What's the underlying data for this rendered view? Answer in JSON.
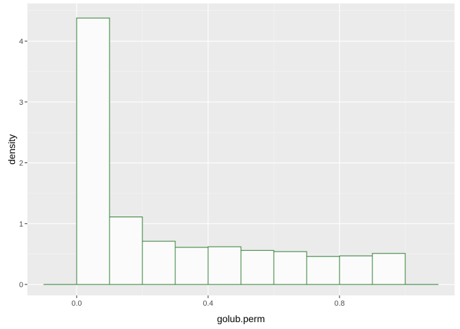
{
  "chart_data": {
    "type": "bar",
    "subtype": "histogram",
    "xlabel": "golub.perm",
    "ylabel": "density",
    "xlim": [
      -0.15,
      1.15
    ],
    "ylim": [
      -0.18,
      4.62
    ],
    "x_ticks": [
      0.0,
      0.4,
      0.8
    ],
    "x_tick_labels": [
      "0.0",
      "0.4",
      "0.8"
    ],
    "y_ticks": [
      0,
      1,
      2,
      3,
      4
    ],
    "y_tick_labels": [
      "0",
      "1",
      "2",
      "3",
      "4"
    ],
    "bins": [
      {
        "x0": -0.1,
        "x1": 0.0,
        "density": 0.0
      },
      {
        "x0": 0.0,
        "x1": 0.1,
        "density": 4.38
      },
      {
        "x0": 0.1,
        "x1": 0.2,
        "density": 1.11
      },
      {
        "x0": 0.2,
        "x1": 0.3,
        "density": 0.71
      },
      {
        "x0": 0.3,
        "x1": 0.4,
        "density": 0.61
      },
      {
        "x0": 0.4,
        "x1": 0.5,
        "density": 0.62
      },
      {
        "x0": 0.5,
        "x1": 0.6,
        "density": 0.56
      },
      {
        "x0": 0.6,
        "x1": 0.7,
        "density": 0.54
      },
      {
        "x0": 0.7,
        "x1": 0.8,
        "density": 0.46
      },
      {
        "x0": 0.8,
        "x1": 0.9,
        "density": 0.47
      },
      {
        "x0": 0.9,
        "x1": 1.0,
        "density": 0.51
      },
      {
        "x0": 1.0,
        "x1": 1.1,
        "density": 0.0
      }
    ],
    "grid": true,
    "colors": {
      "panel_background": "#EBEBEB",
      "grid_major": "#FFFFFF",
      "grid_minor": "#F5F5F5",
      "bar_fill": "#FBFBFB",
      "bar_outline": "#2E7D32",
      "tick_text": "#4D4D4D",
      "tick_mark": "#333333"
    }
  }
}
